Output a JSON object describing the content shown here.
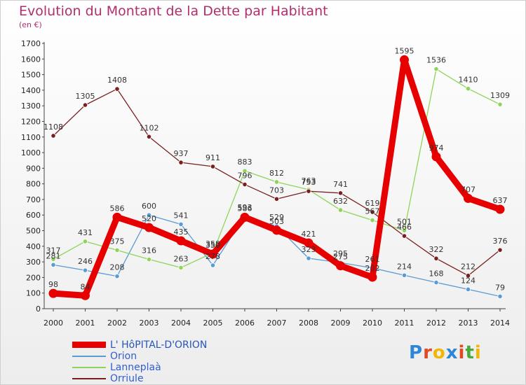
{
  "title": "Evolution du Montant de la Dette par Habitant",
  "subtitle": "(en €)",
  "logo": {
    "letters": [
      "P",
      "r",
      "o",
      "x",
      "i",
      "t",
      "i"
    ],
    "colors": [
      "#2f86d6",
      "#e04a23",
      "#f2b705",
      "#2f86d6",
      "#e04a23",
      "#4aa83c",
      "#f2b705"
    ]
  },
  "chart_data": {
    "type": "line",
    "x": [
      "2000",
      "2001",
      "2002",
      "2003",
      "2004",
      "2005",
      "2006",
      "2007",
      "2008",
      "2009",
      "2010",
      "2011",
      "2012",
      "2013",
      "2014"
    ],
    "ylim": [
      0,
      1700
    ],
    "yticks": [
      0,
      100,
      200,
      300,
      400,
      500,
      600,
      700,
      800,
      900,
      1000,
      1100,
      1200,
      1300,
      1400,
      1500,
      1600,
      1700
    ],
    "grid": false,
    "legend_position": "bottom-left",
    "series": [
      {
        "name": "L' HôPITAL-D'ORION",
        "color": "#e60000",
        "highlight": true,
        "values": [
          98,
          84,
          586,
          520,
          435,
          350,
          586,
          503,
          421,
          275,
          202,
          1595,
          974,
          707,
          637
        ]
      },
      {
        "name": "Orion",
        "color": "#5b9bd5",
        "highlight": false,
        "values": [
          281,
          246,
          208,
          600,
          541,
          278,
          593,
          529,
          323,
          295,
          261,
          214,
          168,
          124,
          79
        ]
      },
      {
        "name": "Lanneplaà",
        "color": "#8ed45a",
        "highlight": false,
        "values": [
          317,
          431,
          375,
          316,
          263,
          358,
          883,
          812,
          763,
          632,
          567,
          501,
          1536,
          1410,
          1309
        ]
      },
      {
        "name": "Orriule",
        "color": "#7a1f1f",
        "highlight": false,
        "values": [
          1108,
          1305,
          1408,
          1102,
          937,
          911,
          796,
          703,
          753,
          741,
          619,
          466,
          322,
          212,
          376
        ]
      }
    ]
  }
}
